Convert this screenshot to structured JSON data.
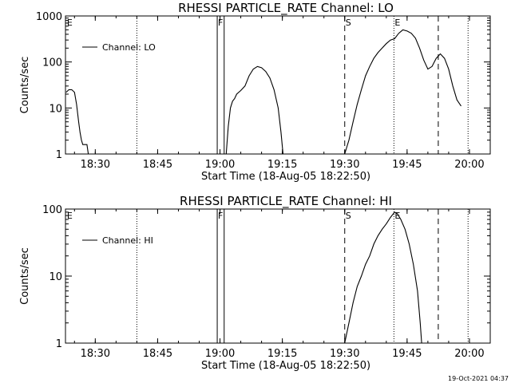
{
  "footer_timestamp": "19-Oct-2021 04:37",
  "chart_data": [
    {
      "type": "line",
      "title": "RHESSI PARTICLE_RATE Channel: LO",
      "xlabel": "Start Time (18-Aug-05 18:22:50)",
      "ylabel": "Counts/sec",
      "x_ticks": [
        "18:30",
        "18:45",
        "19:00",
        "19:15",
        "19:30",
        "19:45",
        "20:00"
      ],
      "y_ticks": [
        "1",
        "10",
        "100",
        "1000"
      ],
      "ylim": [
        1,
        1000
      ],
      "y_scale": "log",
      "xlim": [
        "18:22:50",
        "20:05:00"
      ],
      "legend": {
        "label": "Channel: LO",
        "position": "top-left"
      },
      "markers": [
        {
          "label": "E",
          "time": "18:23:00",
          "style": "none"
        },
        {
          "label": "F",
          "time": "18:59:20",
          "style": "solid"
        },
        {
          "label": "",
          "time": "19:01:00",
          "style": "solid"
        },
        {
          "label": "S",
          "time": "19:30:00",
          "style": "dashed"
        },
        {
          "label": "E",
          "time": "19:41:50",
          "style": "dotted"
        },
        {
          "label": "",
          "time": "19:52:30",
          "style": "dashed"
        },
        {
          "label": "",
          "time": "18:40:00",
          "style": "dotted"
        },
        {
          "label": "",
          "time": "19:59:40",
          "style": "dotted"
        }
      ],
      "series": [
        {
          "name": "Channel: LO",
          "segments": [
            [
              [
                "18:23:00",
                22
              ],
              [
                "18:23:40",
                25
              ],
              [
                "18:24:20",
                25
              ],
              [
                "18:25:00",
                22
              ],
              [
                "18:25:30",
                12
              ],
              [
                "18:26:00",
                5
              ],
              [
                "18:26:20",
                3
              ],
              [
                "18:26:40",
                2
              ],
              [
                "18:27:00",
                1.6
              ],
              [
                "18:27:30",
                1.6
              ],
              [
                "18:28:00",
                1.6
              ],
              [
                "18:28:20",
                1
              ]
            ],
            [
              [
                "19:01:30",
                1
              ],
              [
                "19:02:00",
                4
              ],
              [
                "19:02:30",
                10
              ],
              [
                "19:03:00",
                14
              ],
              [
                "19:03:30",
                16
              ],
              [
                "19:04:00",
                20
              ],
              [
                "19:05:00",
                24
              ],
              [
                "19:06:00",
                30
              ],
              [
                "19:07:00",
                50
              ],
              [
                "19:08:00",
                70
              ],
              [
                "19:09:00",
                80
              ],
              [
                "19:10:00",
                75
              ],
              [
                "19:11:00",
                62
              ],
              [
                "19:12:00",
                45
              ],
              [
                "19:13:00",
                25
              ],
              [
                "19:14:00",
                10
              ],
              [
                "19:14:40",
                3
              ],
              [
                "19:15:10",
                1
              ]
            ],
            [
              [
                "19:30:00",
                1
              ],
              [
                "19:31:00",
                2
              ],
              [
                "19:32:00",
                5
              ],
              [
                "19:33:00",
                12
              ],
              [
                "19:34:00",
                25
              ],
              [
                "19:35:00",
                50
              ],
              [
                "19:36:00",
                80
              ],
              [
                "19:37:00",
                120
              ],
              [
                "19:38:00",
                160
              ],
              [
                "19:39:00",
                200
              ],
              [
                "19:40:00",
                250
              ],
              [
                "19:41:00",
                300
              ],
              [
                "19:42:00",
                320
              ],
              [
                "19:43:00",
                420
              ],
              [
                "19:44:00",
                500
              ],
              [
                "19:45:00",
                470
              ],
              [
                "19:46:00",
                420
              ],
              [
                "19:47:00",
                330
              ],
              [
                "19:48:00",
                200
              ],
              [
                "19:49:00",
                110
              ],
              [
                "19:50:00",
                70
              ],
              [
                "19:51:00",
                80
              ],
              [
                "19:52:00",
                120
              ],
              [
                "19:53:00",
                150
              ],
              [
                "19:54:00",
                120
              ],
              [
                "19:55:00",
                70
              ],
              [
                "19:56:00",
                30
              ],
              [
                "19:57:00",
                15
              ],
              [
                "19:58:00",
                11
              ]
            ]
          ]
        }
      ]
    },
    {
      "type": "line",
      "title": "RHESSI PARTICLE_RATE Channel: HI",
      "xlabel": "Start Time (18-Aug-05 18:22:50)",
      "ylabel": "Counts/sec",
      "x_ticks": [
        "18:30",
        "18:45",
        "19:00",
        "19:15",
        "19:30",
        "19:45",
        "20:00"
      ],
      "y_ticks": [
        "1",
        "10",
        "100"
      ],
      "ylim": [
        1,
        100
      ],
      "y_scale": "log",
      "xlim": [
        "18:22:50",
        "20:05:00"
      ],
      "legend": {
        "label": "Channel: HI",
        "position": "top-left"
      },
      "markers": [
        {
          "label": "E",
          "time": "18:23:00",
          "style": "none"
        },
        {
          "label": "F",
          "time": "18:59:20",
          "style": "solid"
        },
        {
          "label": "",
          "time": "19:01:00",
          "style": "solid"
        },
        {
          "label": "S",
          "time": "19:30:00",
          "style": "dashed"
        },
        {
          "label": "E",
          "time": "19:41:50",
          "style": "dotted"
        },
        {
          "label": "",
          "time": "19:52:30",
          "style": "dashed"
        },
        {
          "label": "",
          "time": "18:40:00",
          "style": "dotted"
        },
        {
          "label": "",
          "time": "19:59:40",
          "style": "dotted"
        }
      ],
      "series": [
        {
          "name": "Channel: HI",
          "segments": [
            [
              [
                "19:30:00",
                1
              ],
              [
                "19:31:00",
                2
              ],
              [
                "19:32:00",
                4
              ],
              [
                "19:33:00",
                7
              ],
              [
                "19:34:00",
                10
              ],
              [
                "19:35:00",
                15
              ],
              [
                "19:36:00",
                20
              ],
              [
                "19:37:00",
                30
              ],
              [
                "19:38:00",
                40
              ],
              [
                "19:39:00",
                50
              ],
              [
                "19:40:00",
                60
              ],
              [
                "19:41:00",
                75
              ],
              [
                "19:42:00",
                90
              ],
              [
                "19:42:40",
                85
              ],
              [
                "19:43:30",
                70
              ],
              [
                "19:44:30",
                50
              ],
              [
                "19:45:30",
                30
              ],
              [
                "19:46:30",
                15
              ],
              [
                "19:47:30",
                6
              ],
              [
                "19:48:10",
                2
              ],
              [
                "19:48:30",
                1
              ]
            ]
          ]
        }
      ]
    }
  ]
}
